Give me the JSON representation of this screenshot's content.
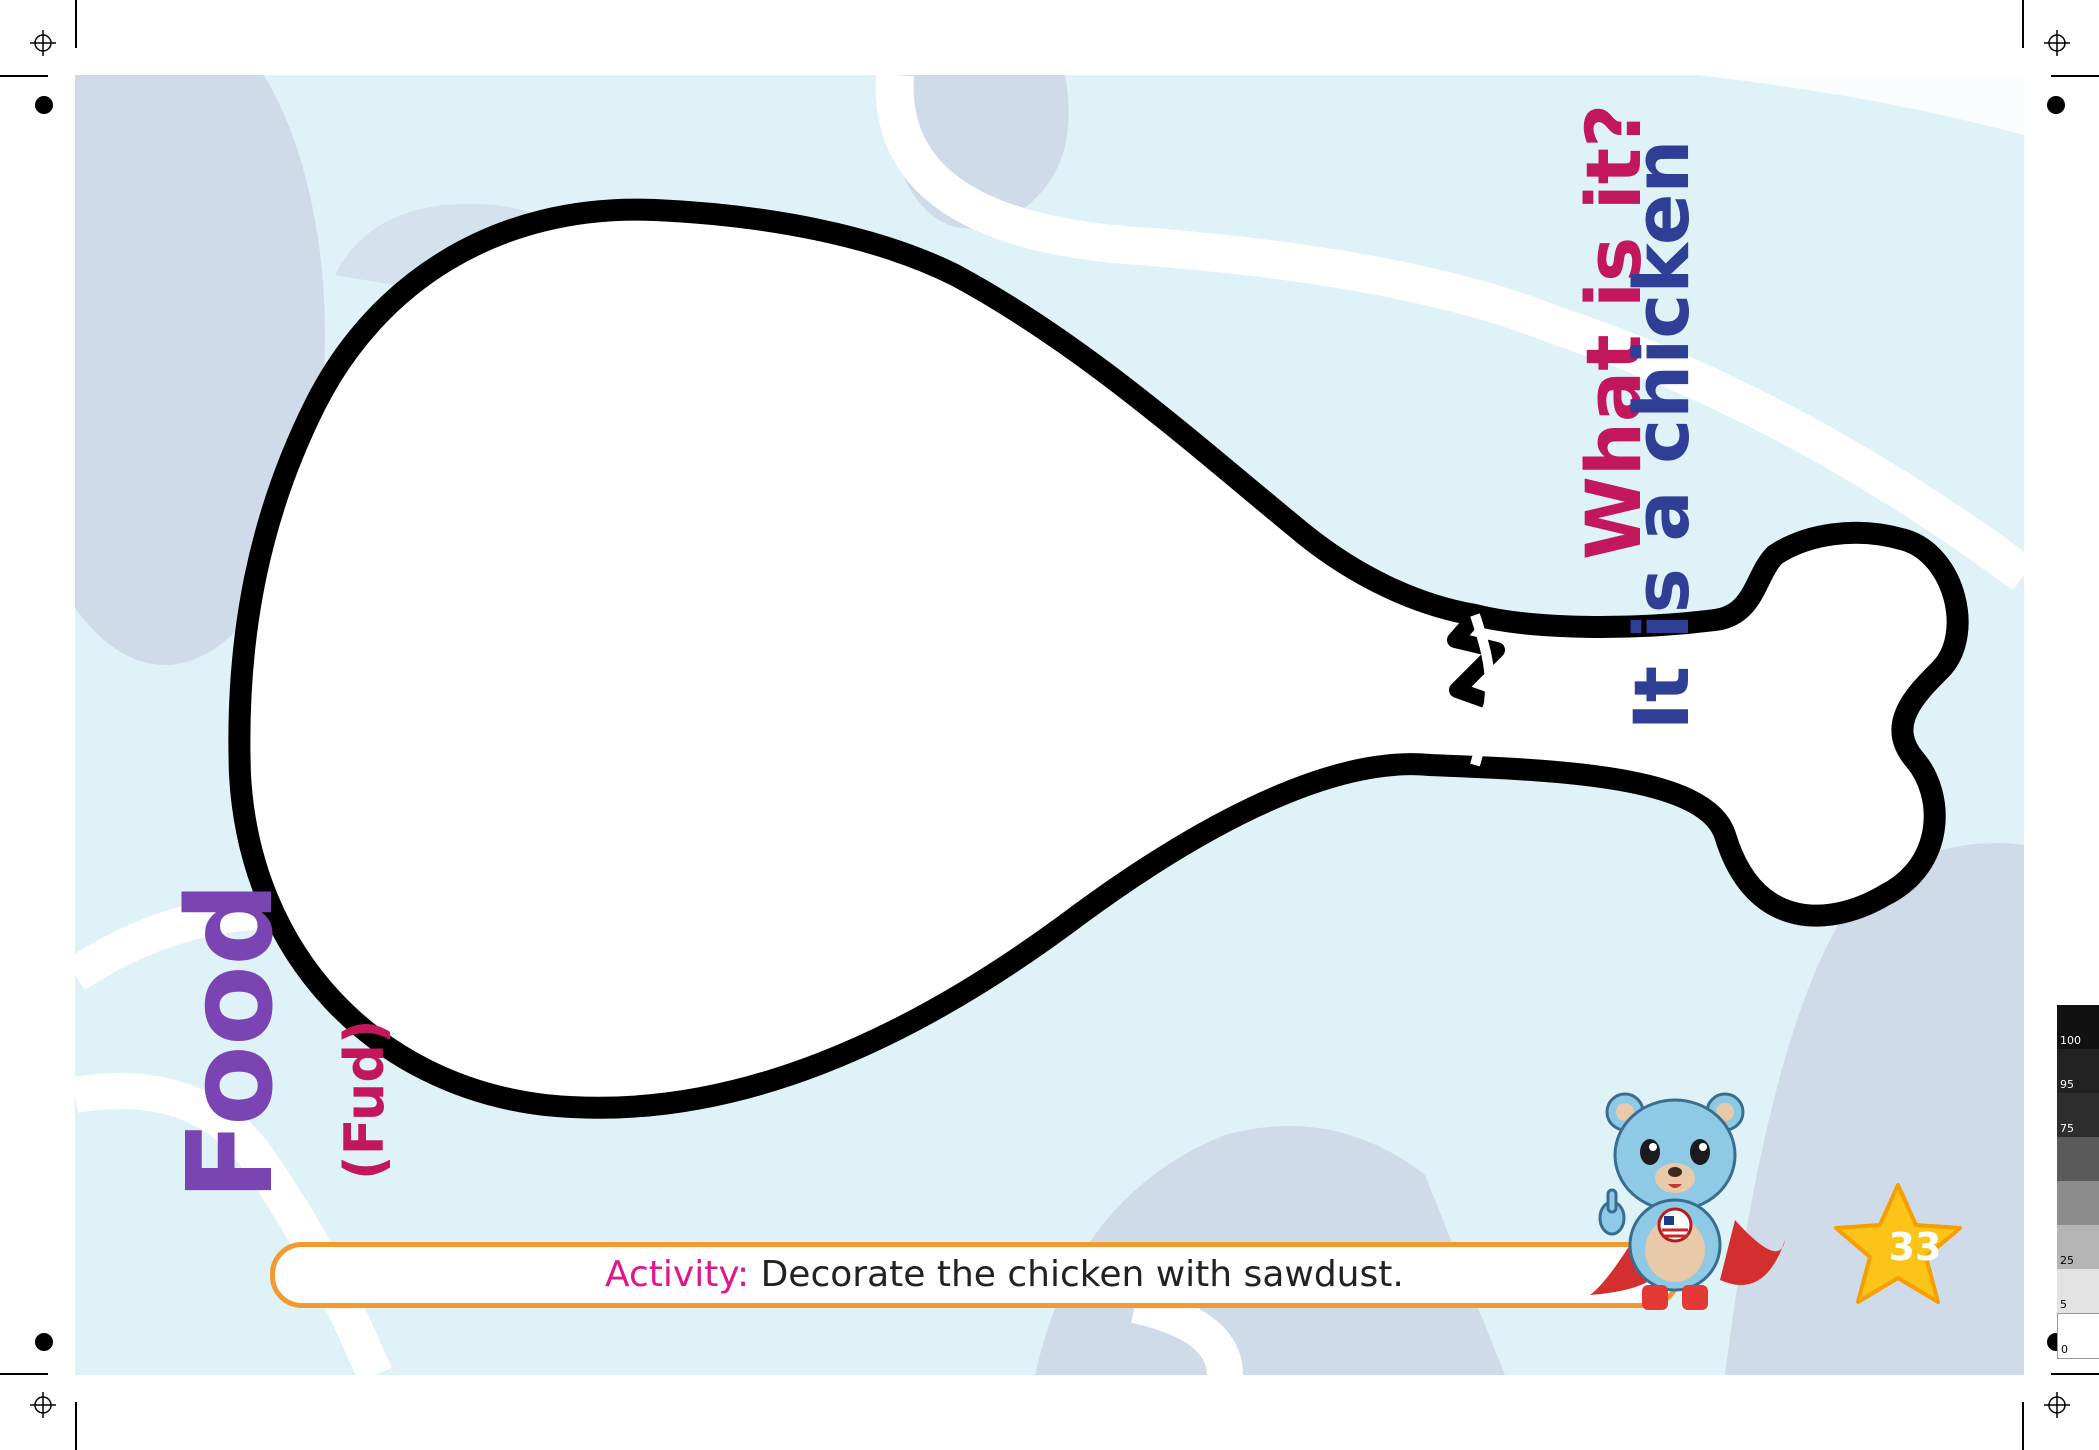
{
  "title": {
    "main": "Food",
    "pronunciation": "(Fud)"
  },
  "question": "What is it?",
  "answer": "It is a chicken",
  "activity": {
    "label": "Activity:",
    "text": " Decorate the chicken with sawdust."
  },
  "page_number": "33",
  "tone_scale": [
    {
      "label": "100",
      "color": "#111111"
    },
    {
      "label": "95",
      "color": "#222222"
    },
    {
      "label": "75",
      "color": "#2e2e2e"
    },
    {
      "label": "",
      "color": "#5a5a5a"
    },
    {
      "label": "",
      "color": "#8c8c8c"
    },
    {
      "label": "25",
      "color": "#b5b5b5"
    },
    {
      "label": "5",
      "color": "#e3e3e3"
    },
    {
      "label": "0",
      "color": "#ffffff"
    }
  ],
  "colors": {
    "background": "#def2f7",
    "blob": "#cfdbe8",
    "accent_orange": "#f29a2e",
    "star": "#fcc419"
  }
}
